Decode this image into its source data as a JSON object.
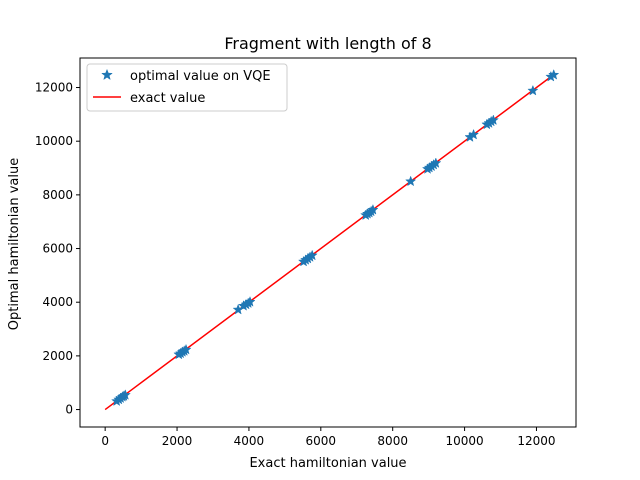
{
  "chart_data": {
    "type": "scatter",
    "title": "Fragment with length of 8",
    "xlabel": "Exact hamiltonian value",
    "ylabel": "Optimal hamiltonian value",
    "xlim": [
      -700,
      13100
    ],
    "ylim": [
      -650,
      13100
    ],
    "xticks": [
      0,
      2000,
      4000,
      6000,
      8000,
      10000,
      12000
    ],
    "yticks": [
      0,
      2000,
      4000,
      6000,
      8000,
      10000,
      12000
    ],
    "grid": false,
    "legend_position": "top-left",
    "series": [
      {
        "name": "optimal value on VQE",
        "kind": "scatter",
        "marker": "star",
        "color": "#1f77b4",
        "points": [
          [
            320,
            310
          ],
          [
            380,
            370
          ],
          [
            430,
            420
          ],
          [
            480,
            470
          ],
          [
            520,
            500
          ],
          [
            560,
            540
          ],
          [
            2050,
            2050
          ],
          [
            2100,
            2090
          ],
          [
            2150,
            2140
          ],
          [
            2200,
            2180
          ],
          [
            2250,
            2230
          ],
          [
            3700,
            3720
          ],
          [
            3850,
            3860
          ],
          [
            3920,
            3910
          ],
          [
            3980,
            3960
          ],
          [
            4030,
            4010
          ],
          [
            5520,
            5510
          ],
          [
            5580,
            5570
          ],
          [
            5640,
            5620
          ],
          [
            5700,
            5680
          ],
          [
            5760,
            5740
          ],
          [
            7250,
            7240
          ],
          [
            7300,
            7290
          ],
          [
            7350,
            7330
          ],
          [
            7400,
            7380
          ],
          [
            7450,
            7440
          ],
          [
            8500,
            8500
          ],
          [
            8970,
            8960
          ],
          [
            9020,
            9010
          ],
          [
            9080,
            9060
          ],
          [
            9140,
            9120
          ],
          [
            9200,
            9180
          ],
          [
            10150,
            10150
          ],
          [
            10250,
            10240
          ],
          [
            10620,
            10620
          ],
          [
            10680,
            10670
          ],
          [
            10740,
            10730
          ],
          [
            10800,
            10780
          ],
          [
            11900,
            11880
          ],
          [
            12400,
            12400
          ],
          [
            12480,
            12470
          ]
        ]
      },
      {
        "name": "exact value",
        "kind": "line",
        "color": "#ff0000",
        "x": [
          0,
          12480
        ],
        "y": [
          0,
          12480
        ]
      }
    ]
  }
}
